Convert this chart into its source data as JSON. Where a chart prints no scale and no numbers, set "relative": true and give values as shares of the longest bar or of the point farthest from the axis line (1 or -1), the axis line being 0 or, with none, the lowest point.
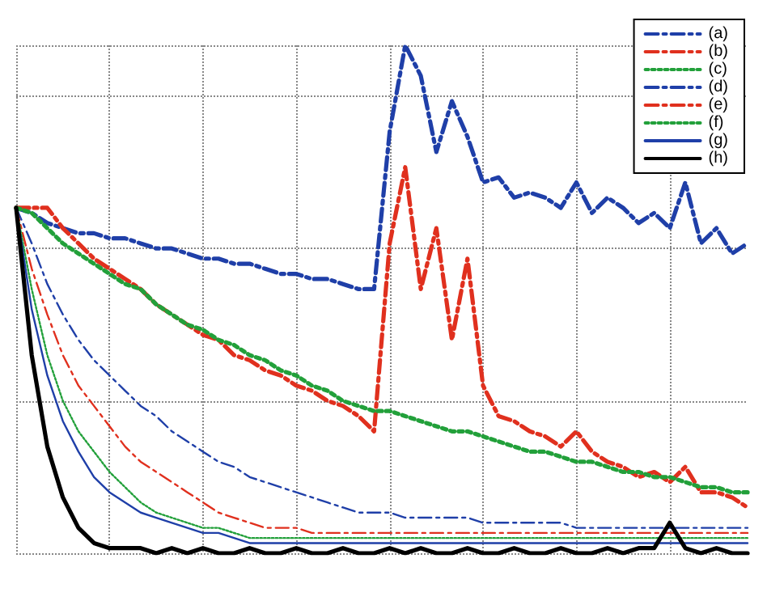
{
  "chart_data": {
    "type": "line",
    "relative": true,
    "grid": true,
    "legend": "top right",
    "marker": "none",
    "categories": [
      null,
      null,
      null,
      null,
      null,
      null,
      null,
      null,
      null,
      null,
      null,
      null,
      null,
      null,
      null,
      null,
      null,
      null,
      null,
      null,
      null,
      null,
      null,
      null,
      null,
      null,
      null,
      null,
      null,
      null,
      null,
      null,
      null,
      null,
      null,
      null,
      null,
      null,
      null,
      null,
      null,
      null,
      null,
      null,
      null,
      null,
      null,
      null
    ],
    "series": [
      {
        "name": "(a)",
        "color": "#1f3fa8",
        "line_style": "dashed",
        "values": [
          0.68,
          0.67,
          0.65,
          0.64,
          0.63,
          0.63,
          0.62,
          0.62,
          0.61,
          0.6,
          0.6,
          0.59,
          0.58,
          0.58,
          0.57,
          0.57,
          0.56,
          0.55,
          0.55,
          0.54,
          0.54,
          0.53,
          0.52,
          0.52,
          0.83,
          1.0,
          0.94,
          0.79,
          0.89,
          0.82,
          0.73,
          0.74,
          0.7,
          0.71,
          0.7,
          0.68,
          0.73,
          0.67,
          0.7,
          0.68,
          0.65,
          0.67,
          0.64,
          0.73,
          0.61,
          0.64,
          0.59,
          0.61
        ]
      },
      {
        "name": "(b)",
        "color": "#e0301e",
        "line_style": "dashed",
        "values": [
          0.68,
          0.68,
          0.68,
          0.64,
          0.61,
          0.58,
          0.56,
          0.54,
          0.52,
          0.49,
          0.47,
          0.45,
          0.43,
          0.42,
          0.39,
          0.38,
          0.36,
          0.35,
          0.33,
          0.32,
          0.3,
          0.29,
          0.27,
          0.24,
          0.61,
          0.76,
          0.52,
          0.64,
          0.42,
          0.58,
          0.33,
          0.27,
          0.26,
          0.24,
          0.23,
          0.21,
          0.24,
          0.2,
          0.18,
          0.17,
          0.15,
          0.16,
          0.14,
          0.17,
          0.12,
          0.12,
          0.11,
          0.09
        ]
      },
      {
        "name": "(c)",
        "color": "#22a03a",
        "line_style": "dotted",
        "values": [
          0.68,
          0.67,
          0.64,
          0.61,
          0.59,
          0.57,
          0.55,
          0.53,
          0.52,
          0.49,
          0.47,
          0.45,
          0.44,
          0.42,
          0.41,
          0.39,
          0.38,
          0.36,
          0.35,
          0.33,
          0.32,
          0.3,
          0.29,
          0.28,
          0.28,
          0.27,
          0.26,
          0.25,
          0.24,
          0.24,
          0.23,
          0.22,
          0.21,
          0.2,
          0.2,
          0.19,
          0.18,
          0.18,
          0.17,
          0.16,
          0.16,
          0.15,
          0.15,
          0.14,
          0.13,
          0.13,
          0.12,
          0.12
        ]
      },
      {
        "name": "(d)",
        "color": "#1f3fa8",
        "line_style": "dashed",
        "values": [
          0.68,
          0.61,
          0.53,
          0.47,
          0.42,
          0.38,
          0.35,
          0.32,
          0.29,
          0.27,
          0.24,
          0.22,
          0.2,
          0.18,
          0.17,
          0.15,
          0.14,
          0.13,
          0.12,
          0.11,
          0.1,
          0.09,
          0.08,
          0.08,
          0.08,
          0.07,
          0.07,
          0.07,
          0.07,
          0.07,
          0.06,
          0.06,
          0.06,
          0.06,
          0.06,
          0.06,
          0.05,
          0.05,
          0.05,
          0.05,
          0.05,
          0.05,
          0.05,
          0.05,
          0.05,
          0.05,
          0.05,
          0.05
        ]
      },
      {
        "name": "(e)",
        "color": "#e0301e",
        "line_style": "dashed",
        "values": [
          0.68,
          0.56,
          0.47,
          0.39,
          0.33,
          0.29,
          0.25,
          0.21,
          0.18,
          0.16,
          0.14,
          0.12,
          0.1,
          0.08,
          0.07,
          0.06,
          0.05,
          0.05,
          0.05,
          0.04,
          0.04,
          0.04,
          0.04,
          0.04,
          0.04,
          0.04,
          0.04,
          0.04,
          0.04,
          0.04,
          0.04,
          0.04,
          0.04,
          0.04,
          0.04,
          0.04,
          0.04,
          0.04,
          0.04,
          0.04,
          0.04,
          0.04,
          0.04,
          0.04,
          0.04,
          0.04,
          0.04,
          0.04
        ]
      },
      {
        "name": "(f)",
        "color": "#22a03a",
        "line_style": "dotted",
        "values": [
          0.68,
          0.52,
          0.39,
          0.3,
          0.24,
          0.2,
          0.16,
          0.13,
          0.1,
          0.08,
          0.07,
          0.06,
          0.05,
          0.05,
          0.04,
          0.03,
          0.03,
          0.03,
          0.03,
          0.03,
          0.03,
          0.03,
          0.03,
          0.03,
          0.03,
          0.03,
          0.03,
          0.03,
          0.03,
          0.03,
          0.03,
          0.03,
          0.03,
          0.03,
          0.03,
          0.03,
          0.03,
          0.03,
          0.03,
          0.03,
          0.03,
          0.03,
          0.03,
          0.03,
          0.03,
          0.03,
          0.03,
          0.03
        ]
      },
      {
        "name": "(g)",
        "color": "#1f3fa8",
        "line_style": "solid",
        "values": [
          0.68,
          0.48,
          0.35,
          0.26,
          0.2,
          0.15,
          0.12,
          0.1,
          0.08,
          0.07,
          0.06,
          0.05,
          0.04,
          0.04,
          0.03,
          0.02,
          0.02,
          0.02,
          0.02,
          0.02,
          0.02,
          0.02,
          0.02,
          0.02,
          0.02,
          0.02,
          0.02,
          0.02,
          0.02,
          0.02,
          0.02,
          0.02,
          0.02,
          0.02,
          0.02,
          0.02,
          0.02,
          0.02,
          0.02,
          0.02,
          0.02,
          0.02,
          0.02,
          0.02,
          0.02,
          0.02,
          0.02,
          0.02
        ]
      },
      {
        "name": "(h)",
        "color": "#000000",
        "line_style": "solid",
        "values": [
          0.68,
          0.39,
          0.21,
          0.11,
          0.05,
          0.02,
          0.01,
          0.01,
          0.01,
          0,
          0.01,
          0,
          0.01,
          0,
          0,
          0.01,
          0,
          0,
          0.01,
          0,
          0,
          0.01,
          0,
          0,
          0.01,
          0,
          0.01,
          0,
          0,
          0.01,
          0,
          0,
          0.01,
          0,
          0,
          0.01,
          0,
          0,
          0.01,
          0,
          0.01,
          0.01,
          0.06,
          0.01,
          0,
          0.01,
          0,
          0
        ]
      }
    ]
  }
}
